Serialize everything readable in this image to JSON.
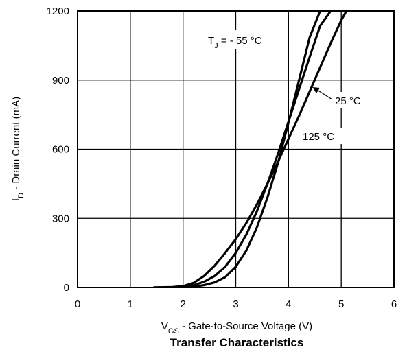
{
  "chart_data": {
    "type": "line",
    "title": "Transfer Characteristics",
    "xlabel": {
      "main": "V",
      "sub": "GS",
      "rest": " - Gate-to-Source Voltage (V)"
    },
    "ylabel": {
      "main": "I",
      "sub": "D",
      "rest": " - Drain Current (mA)"
    },
    "xlim": [
      0,
      6
    ],
    "ylim": [
      0,
      1200
    ],
    "xticks": [
      0,
      1,
      2,
      3,
      4,
      5,
      6
    ],
    "yticks": [
      0,
      300,
      600,
      900,
      1200
    ],
    "grid": true,
    "series": [
      {
        "name": "- 55 °C",
        "x": [
          1.45,
          1.8,
          2.0,
          2.2,
          2.4,
          2.6,
          2.8,
          3.0,
          3.2,
          3.4,
          3.6,
          3.8,
          4.0,
          4.2,
          4.4,
          4.6
        ],
        "y": [
          0,
          0,
          1,
          4,
          10,
          22,
          45,
          90,
          160,
          260,
          390,
          540,
          715,
          900,
          1085,
          1200
        ]
      },
      {
        "name": "25 °C",
        "x": [
          1.45,
          1.8,
          2.0,
          2.2,
          2.4,
          2.6,
          2.8,
          3.0,
          3.2,
          3.4,
          3.6,
          3.8,
          4.0,
          4.2,
          4.4,
          4.6,
          4.8
        ],
        "y": [
          0,
          1,
          3,
          10,
          25,
          50,
          90,
          150,
          230,
          330,
          450,
          580,
          720,
          860,
          1000,
          1135,
          1200
        ]
      },
      {
        "name": "125 °C",
        "x": [
          1.45,
          1.8,
          2.0,
          2.2,
          2.4,
          2.6,
          2.8,
          3.0,
          3.2,
          3.4,
          3.6,
          3.8,
          4.0,
          4.2,
          4.4,
          4.6,
          4.8,
          5.0,
          5.1
        ],
        "y": [
          0,
          2,
          6,
          20,
          50,
          95,
          150,
          210,
          280,
          360,
          450,
          545,
          645,
          745,
          850,
          955,
          1060,
          1160,
          1200
        ]
      }
    ],
    "annotations": {
      "tj_main": "T",
      "tj_sub": "J",
      "tj_rest": " = - 55 °C",
      "t25": "25 °C",
      "t125": "125 °C"
    }
  }
}
